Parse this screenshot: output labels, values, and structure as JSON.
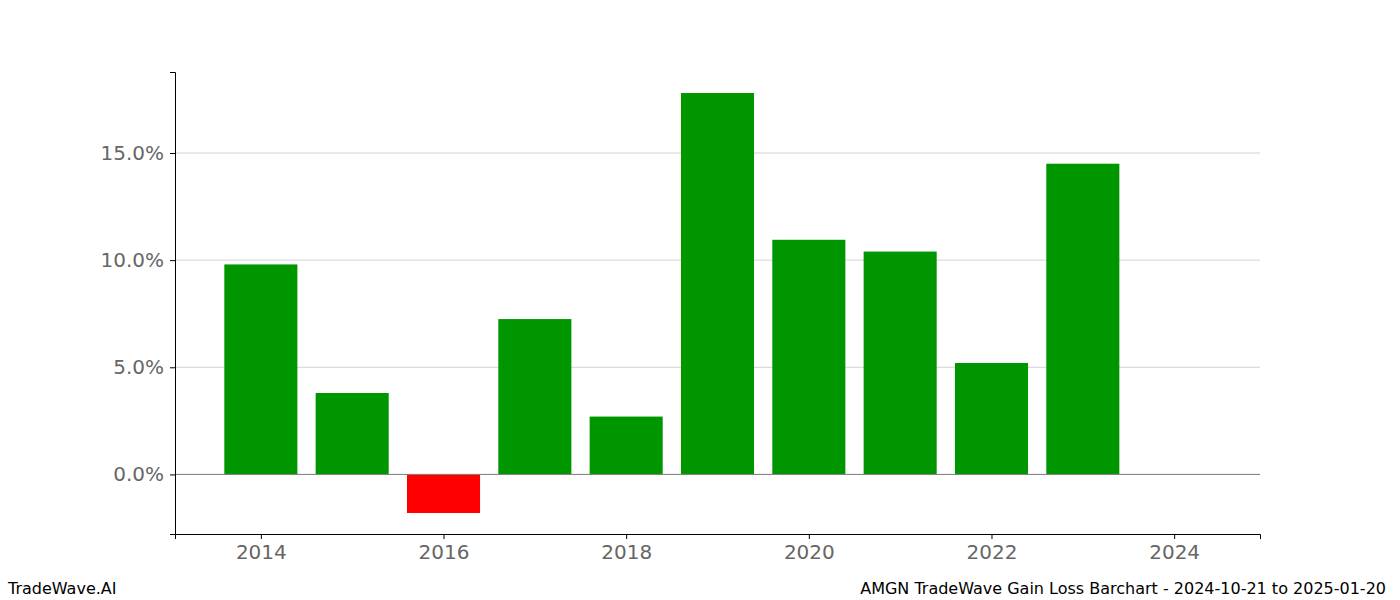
{
  "chart_data": {
    "type": "bar",
    "title": "AMGN TradeWave Gain Loss Barchart - 2024-10-21 to 2025-01-20",
    "annotations": [
      "TradeWave.AI"
    ],
    "x": [
      2014,
      2015,
      2016,
      2017,
      2018,
      2019,
      2020,
      2021,
      2022,
      2023
    ],
    "values": [
      9.8,
      3.8,
      -1.8,
      7.25,
      2.7,
      17.8,
      10.95,
      10.4,
      5.2,
      14.5
    ],
    "colors": [
      "#009600",
      "#009600",
      "#ff0000",
      "#009600",
      "#009600",
      "#009600",
      "#009600",
      "#009600",
      "#009600",
      "#009600"
    ],
    "xlim": [
      2013.06,
      2024.94
    ],
    "xticks": [
      2014,
      2016,
      2018,
      2020,
      2022,
      2024
    ],
    "ylim": [
      -2.78,
      18.78
    ],
    "yticks": [
      {
        "value": 0,
        "label": "0.0%"
      },
      {
        "value": 5,
        "label": "5.0%"
      },
      {
        "value": 10,
        "label": "10.0%"
      },
      {
        "value": 15,
        "label": "15.0%"
      }
    ],
    "grid": true
  }
}
